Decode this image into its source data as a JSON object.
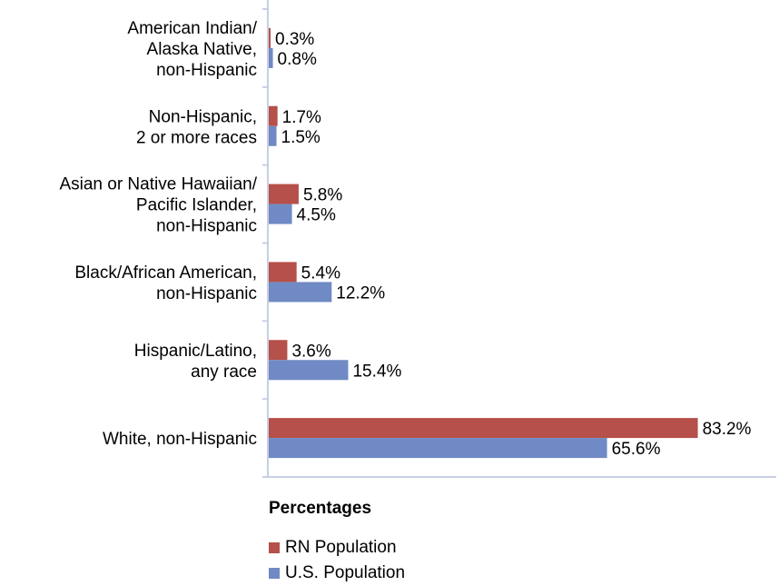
{
  "chart_data": {
    "type": "bar",
    "orientation": "horizontal",
    "categories": [
      [
        "American Indian/",
        "Alaska Native,",
        "non-Hispanic"
      ],
      [
        "Non-Hispanic,",
        "2 or more races"
      ],
      [
        "Asian or Native Hawaiian/",
        "Pacific Islander,",
        "non-Hispanic"
      ],
      [
        "Black/African American,",
        "non-Hispanic"
      ],
      [
        "Hispanic/Latino,",
        "any race"
      ],
      [
        "White, non-Hispanic"
      ]
    ],
    "series": [
      {
        "name": "RN Population",
        "color": "#b5504a",
        "values": [
          0.3,
          1.7,
          5.8,
          5.4,
          3.6,
          83.2
        ],
        "labels": [
          "0.3%",
          "1.7%",
          "5.8%",
          "5.4%",
          "3.6%",
          "83.2%"
        ]
      },
      {
        "name": "U.S. Population",
        "color": "#6f8ac4",
        "values": [
          0.8,
          1.5,
          4.5,
          12.2,
          15.4,
          65.6
        ],
        "labels": [
          "0.8%",
          "1.5%",
          "4.5%",
          "12.2%",
          "15.4%",
          "65.6%"
        ]
      }
    ],
    "xlim": [
      0,
      100
    ],
    "axis_color": "#c7cfe3",
    "grid": false,
    "legend_title": "Percentages",
    "legend_position": "bottom"
  }
}
